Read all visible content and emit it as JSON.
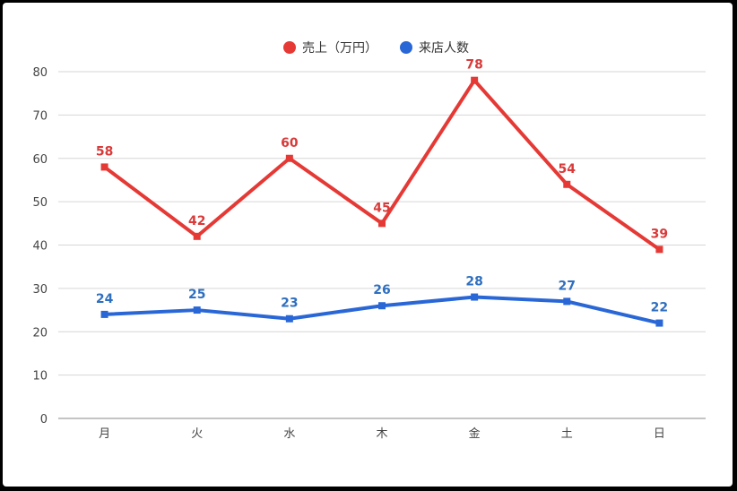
{
  "chart_data": {
    "type": "line",
    "title": "",
    "xlabel": "",
    "ylabel": "",
    "categories": [
      "月",
      "火",
      "水",
      "木",
      "金",
      "土",
      "日"
    ],
    "ylim": [
      0,
      80
    ],
    "yticks": [
      0,
      10,
      20,
      30,
      40,
      50,
      60,
      70,
      80
    ],
    "grid": true,
    "legend_position": "top-center",
    "data_labels": true,
    "series": [
      {
        "name": "売上（万円）",
        "color": "#e53935",
        "label_color": "#d93a3a",
        "values": [
          58,
          42,
          60,
          45,
          78,
          54,
          39
        ]
      },
      {
        "name": "来店人数",
        "color": "#2a67d6",
        "label_color": "#2f6fbf",
        "values": [
          24,
          25,
          23,
          26,
          28,
          27,
          22
        ]
      }
    ]
  }
}
